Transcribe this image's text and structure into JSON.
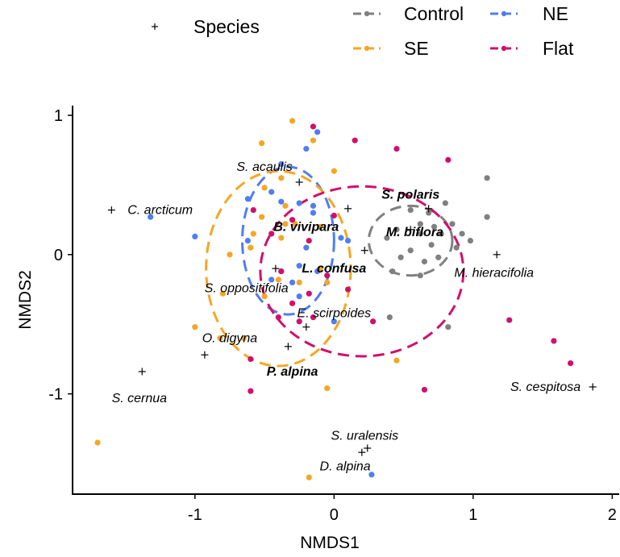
{
  "chart_data": {
    "type": "scatter",
    "xlabel": "NMDS1",
    "ylabel": "NMDS2",
    "xlim": [
      -1.88,
      2.05
    ],
    "ylim": [
      -1.72,
      1.07
    ],
    "xticks": [
      -1,
      0,
      1,
      2
    ],
    "yticks": [
      1,
      0,
      -1
    ],
    "xtick_labels": [
      "-1",
      "0",
      "1",
      "2"
    ],
    "ytick_labels": [
      "1",
      "0",
      "-1"
    ],
    "grid": false,
    "legend_position": "top",
    "legend": [
      {
        "name": "Species",
        "marker": "plus",
        "color": "#000000"
      },
      {
        "name": "Control",
        "marker": "dot-dash",
        "color": "#808080"
      },
      {
        "name": "NE",
        "marker": "dot-dash",
        "color": "#4f7ef0"
      },
      {
        "name": "SE",
        "marker": "dot-dash",
        "color": "#f5a623"
      },
      {
        "name": "Flat",
        "marker": "dot-dash",
        "color": "#d0106a"
      }
    ],
    "series": [
      {
        "name": "Control",
        "color": "#808080",
        "points": [
          [
            0.55,
            0.32
          ],
          [
            0.68,
            0.3
          ],
          [
            0.8,
            0.37
          ],
          [
            0.62,
            0.22
          ],
          [
            0.72,
            0.2
          ],
          [
            0.85,
            0.22
          ],
          [
            1.1,
            0.55
          ],
          [
            1.1,
            0.27
          ],
          [
            0.45,
            0.18
          ],
          [
            0.62,
            0.15
          ],
          [
            0.77,
            0.15
          ],
          [
            0.92,
            0.15
          ],
          [
            0.38,
            0.12
          ],
          [
            0.7,
            0.07
          ],
          [
            0.98,
            0.1
          ],
          [
            0.48,
            -0.02
          ],
          [
            0.55,
            0.03
          ],
          [
            0.65,
            -0.05
          ],
          [
            0.75,
            -0.02
          ],
          [
            0.88,
            0.05
          ],
          [
            0.42,
            -0.12
          ],
          [
            0.62,
            -0.15
          ],
          [
            0.4,
            -0.45
          ],
          [
            0.82,
            -0.52
          ]
        ]
      },
      {
        "name": "NE",
        "color": "#4f7ef0",
        "points": [
          [
            -1.32,
            0.27
          ],
          [
            -1.0,
            0.13
          ],
          [
            -0.12,
            0.88
          ],
          [
            -0.2,
            0.76
          ],
          [
            -0.38,
            0.65
          ],
          [
            -0.15,
            0.35
          ],
          [
            -0.15,
            0.3
          ],
          [
            -0.45,
            0.45
          ],
          [
            -0.38,
            0.38
          ],
          [
            -0.25,
            0.37
          ],
          [
            -0.62,
            0.4
          ],
          [
            -0.62,
            0.1
          ],
          [
            -0.2,
            0.05
          ],
          [
            0.05,
            0.12
          ],
          [
            0.1,
            0.1
          ],
          [
            -0.38,
            -0.12
          ],
          [
            -0.25,
            -0.08
          ],
          [
            -0.12,
            -0.12
          ],
          [
            -0.45,
            -0.18
          ],
          [
            -0.3,
            -0.2
          ],
          [
            -0.25,
            -0.3
          ],
          [
            0.0,
            -0.48
          ],
          [
            0.27,
            -1.58
          ]
        ]
      },
      {
        "name": "SE",
        "color": "#f5a623",
        "points": [
          [
            -0.3,
            0.96
          ],
          [
            -0.52,
            0.8
          ],
          [
            -0.15,
            0.82
          ],
          [
            -0.38,
            0.55
          ],
          [
            0.0,
            0.6
          ],
          [
            -0.5,
            0.48
          ],
          [
            -0.35,
            0.35
          ],
          [
            -0.52,
            0.27
          ],
          [
            -0.35,
            0.22
          ],
          [
            -0.28,
            0.22
          ],
          [
            -0.58,
            0.15
          ],
          [
            -0.38,
            0.12
          ],
          [
            -0.1,
            0.2
          ],
          [
            -0.6,
            0.05
          ],
          [
            -0.75,
            0.0
          ],
          [
            -0.4,
            -0.18
          ],
          [
            -0.5,
            -0.3
          ],
          [
            -0.25,
            -0.2
          ],
          [
            -0.1,
            -0.1
          ],
          [
            -0.05,
            -0.2
          ],
          [
            -0.8,
            -0.28
          ],
          [
            -1.0,
            -0.52
          ],
          [
            -0.82,
            -0.6
          ],
          [
            -0.65,
            -0.6
          ],
          [
            0.45,
            -0.76
          ],
          [
            -0.05,
            -0.96
          ],
          [
            -1.7,
            -1.35
          ],
          [
            -0.18,
            -1.6
          ]
        ]
      },
      {
        "name": "Flat",
        "color": "#d0106a",
        "points": [
          [
            -0.15,
            0.92
          ],
          [
            0.15,
            0.82
          ],
          [
            0.45,
            0.76
          ],
          [
            0.82,
            0.68
          ],
          [
            -0.58,
            0.32
          ],
          [
            -0.3,
            0.25
          ],
          [
            0.0,
            0.28
          ],
          [
            -0.45,
            0.15
          ],
          [
            -0.18,
            0.1
          ],
          [
            -0.38,
            -0.12
          ],
          [
            -0.05,
            -0.15
          ],
          [
            -0.18,
            -0.28
          ],
          [
            -0.3,
            -0.35
          ],
          [
            0.1,
            -0.25
          ],
          [
            -0.4,
            -0.45
          ],
          [
            -0.25,
            -0.48
          ],
          [
            -0.15,
            -0.45
          ],
          [
            0.28,
            -0.48
          ],
          [
            -0.6,
            -0.75
          ],
          [
            -0.6,
            -0.98
          ],
          [
            1.26,
            -0.47
          ],
          [
            1.58,
            -0.62
          ],
          [
            1.7,
            -0.78
          ],
          [
            0.65,
            -0.97
          ]
        ]
      }
    ],
    "ellipses": [
      {
        "name": "Control",
        "color": "#808080",
        "cx": 0.55,
        "cy": 0.1,
        "rx": 0.3,
        "ry": 0.25
      },
      {
        "name": "NE",
        "color": "#4f7ef0",
        "cx": -0.33,
        "cy": 0.1,
        "rx": 0.33,
        "ry": 0.53
      },
      {
        "name": "SE",
        "color": "#f5a623",
        "cx": -0.4,
        "cy": -0.1,
        "rx": 0.52,
        "ry": 0.7
      },
      {
        "name": "Flat",
        "color": "#d0106a",
        "cx": 0.2,
        "cy": -0.12,
        "rx": 0.73,
        "ry": 0.61
      }
    ],
    "species": [
      {
        "name": "S. acaulis",
        "x": -0.25,
        "y": 0.52,
        "lx": -0.5,
        "ly": 0.63,
        "bold": false
      },
      {
        "name": "S. polaris",
        "x": 0.68,
        "y": 0.33,
        "lx": 0.55,
        "ly": 0.43,
        "bold": true
      },
      {
        "name": "C. arcticum",
        "x": -1.6,
        "y": 0.32,
        "lx": -1.25,
        "ly": 0.32,
        "bold": false
      },
      {
        "name": "B. vivipara",
        "x": 0.1,
        "y": 0.33,
        "lx": -0.2,
        "ly": 0.2,
        "bold": true
      },
      {
        "name": "M. biflora",
        "x": 0.55,
        "y": 0.18,
        "lx": 0.58,
        "ly": 0.16,
        "bold": true
      },
      {
        "name": "M. hieracifolia",
        "x": 1.17,
        "y": 0.0,
        "lx": 1.15,
        "ly": -0.13,
        "bold": false
      },
      {
        "name": "L. confusa",
        "x": 0.22,
        "y": 0.03,
        "lx": 0.0,
        "ly": -0.1,
        "bold": true
      },
      {
        "name": "S. oppositifolia",
        "x": -0.42,
        "y": -0.1,
        "lx": -0.63,
        "ly": -0.24,
        "bold": false
      },
      {
        "name": "E. scirpoides",
        "x": -0.2,
        "y": -0.52,
        "lx": 0.0,
        "ly": -0.42,
        "bold": false
      },
      {
        "name": "O. digyna",
        "x": -0.93,
        "y": -0.72,
        "lx": -0.75,
        "ly": -0.6,
        "bold": false
      },
      {
        "name": "P. alpina",
        "x": -0.33,
        "y": -0.66,
        "lx": -0.3,
        "ly": -0.84,
        "bold": true
      },
      {
        "name": "S. cernua",
        "x": -1.38,
        "y": -0.84,
        "lx": -1.4,
        "ly": -1.03,
        "bold": false
      },
      {
        "name": "S. cespitosa",
        "x": 1.86,
        "y": -0.95,
        "lx": 1.52,
        "ly": -0.95,
        "bold": false
      },
      {
        "name": "S. uralensis",
        "x": 0.24,
        "y": -1.39,
        "lx": 0.22,
        "ly": -1.3,
        "bold": false
      },
      {
        "name": "D. alpina",
        "x": 0.2,
        "y": -1.42,
        "lx": 0.08,
        "ly": -1.52,
        "bold": false
      }
    ]
  }
}
